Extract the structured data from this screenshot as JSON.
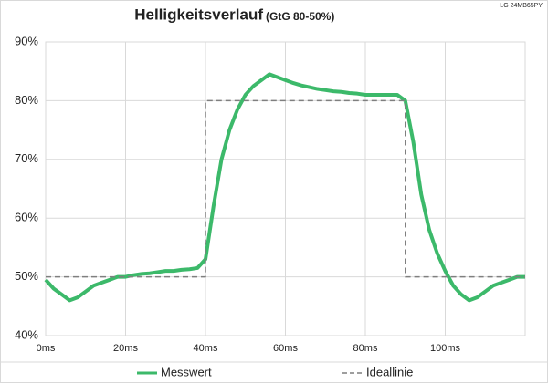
{
  "chart_data": {
    "type": "line",
    "title": "Helligkeitsverlauf",
    "subtitle": "(GtG 80-50%)",
    "annotation": "LG 24MB65PY",
    "xlim": [
      0,
      120
    ],
    "xticks": [
      {
        "value": 0,
        "label": "0ms"
      },
      {
        "value": 20,
        "label": "20ms"
      },
      {
        "value": 40,
        "label": "40ms"
      },
      {
        "value": 60,
        "label": "60ms"
      },
      {
        "value": 80,
        "label": "80ms"
      },
      {
        "value": 100,
        "label": "100ms"
      }
    ],
    "ylim": [
      40,
      90
    ],
    "yticks": [
      {
        "value": 40,
        "label": "40%"
      },
      {
        "value": 50,
        "label": "50%"
      },
      {
        "value": 60,
        "label": "60%"
      },
      {
        "value": 70,
        "label": "70%"
      },
      {
        "value": 80,
        "label": "80%"
      },
      {
        "value": 90,
        "label": "90%"
      }
    ],
    "grid": true,
    "legend": "bottom",
    "series": [
      {
        "name": "Messwert",
        "color": "#3cb96a",
        "x": [
          0,
          2,
          4,
          6,
          8,
          10,
          12,
          14,
          16,
          18,
          20,
          22,
          24,
          26,
          28,
          30,
          32,
          34,
          36,
          38,
          40,
          42,
          44,
          46,
          48,
          50,
          52,
          54,
          56,
          58,
          60,
          62,
          64,
          66,
          68,
          70,
          72,
          74,
          76,
          78,
          80,
          82,
          84,
          86,
          88,
          90,
          92,
          94,
          96,
          98,
          100,
          102,
          104,
          106,
          108,
          110,
          112,
          114,
          116,
          118,
          120
        ],
        "values": [
          49.5,
          48,
          47,
          46,
          46.5,
          47.5,
          48.5,
          49,
          49.5,
          50,
          50,
          50.3,
          50.5,
          50.6,
          50.8,
          51,
          51,
          51.2,
          51.3,
          51.5,
          53,
          62,
          70,
          75,
          78.5,
          81,
          82.5,
          83.5,
          84.5,
          84,
          83.5,
          83,
          82.6,
          82.3,
          82,
          81.8,
          81.6,
          81.5,
          81.3,
          81.2,
          81,
          81,
          81,
          81,
          81,
          80,
          73,
          64,
          58,
          54,
          51,
          48.5,
          47,
          46,
          46.5,
          47.5,
          48.5,
          49,
          49.5,
          50,
          50
        ]
      },
      {
        "name": "Ideallinie",
        "color": "#7f7f7f",
        "dashed": true,
        "x": [
          0,
          40,
          40,
          90,
          90,
          120
        ],
        "values": [
          50,
          50,
          80,
          80,
          50,
          50
        ]
      }
    ]
  }
}
